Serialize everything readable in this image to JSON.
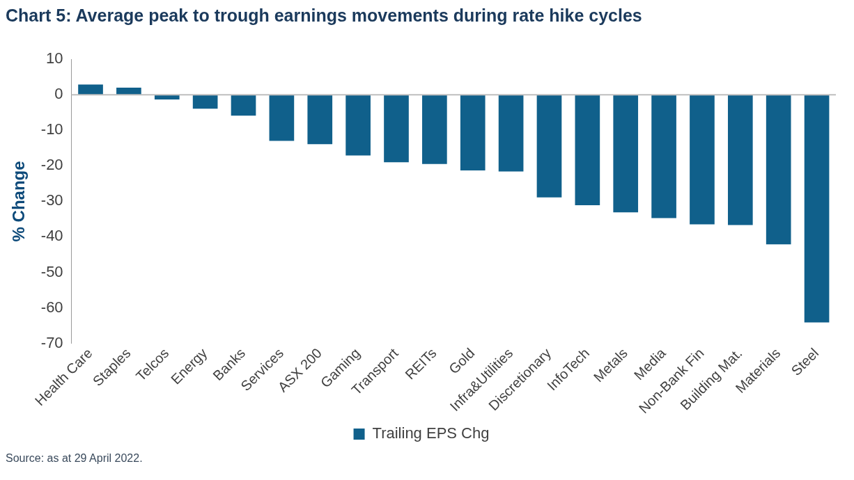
{
  "chart_data": {
    "type": "bar",
    "title": "Chart 5: Average peak to trough earnings movements during rate hike cycles",
    "ylabel": "% Change",
    "categories": [
      "Health Care",
      "Staples",
      "Telcos",
      "Energy",
      "Banks",
      "Services",
      "ASX 200",
      "Gaming",
      "Transport",
      "REITs",
      "Gold",
      "Infra&Utilities",
      "Discretionary",
      "InfoTech",
      "Metals",
      "Media",
      "Non-Bank Fin",
      "Building Mat.",
      "Materials",
      "Steel"
    ],
    "series": [
      {
        "name": "Trailing EPS Chg",
        "color": "#10608b",
        "values": [
          2.9,
          2.0,
          -1.3,
          -3.9,
          -5.9,
          -13.0,
          -13.9,
          -17.1,
          -19.0,
          -19.5,
          -21.3,
          -21.6,
          -28.9,
          -31.1,
          -33.1,
          -34.7,
          -36.5,
          -36.7,
          -42.1,
          -64.1
        ]
      }
    ],
    "ylim": [
      -70,
      10
    ],
    "yticks": [
      10,
      0,
      -10,
      -20,
      -30,
      -40,
      -50,
      -60,
      -70
    ],
    "legend": "bottom",
    "annotations": [
      "Source: as at 29 April 2022."
    ]
  }
}
